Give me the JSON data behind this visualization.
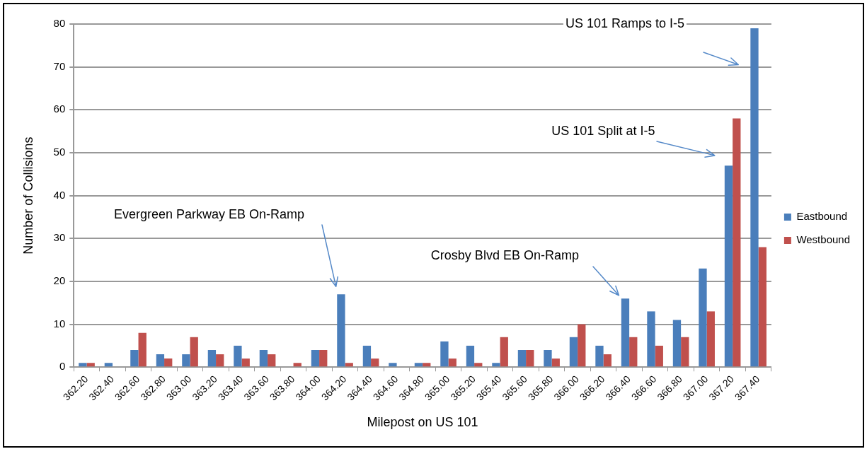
{
  "chart_data": {
    "type": "bar",
    "xlabel": "Milepost on US 101",
    "ylabel": "Number of Collisions",
    "categories": [
      "362.20",
      "362.40",
      "362.60",
      "362.80",
      "363.00",
      "363.20",
      "363.40",
      "363.60",
      "363.80",
      "364.00",
      "364.20",
      "364.40",
      "364.60",
      "364.80",
      "365.00",
      "365.20",
      "365.40",
      "365.60",
      "365.80",
      "366.00",
      "366.20",
      "366.40",
      "366.60",
      "366.80",
      "367.00",
      "367.20",
      "367.40"
    ],
    "series": [
      {
        "name": "Eastbound",
        "color": "#4a7ebb",
        "values": [
          1,
          1,
          4,
          3,
          3,
          4,
          5,
          4,
          0,
          4,
          17,
          5,
          1,
          1,
          6,
          5,
          1,
          4,
          4,
          7,
          5,
          16,
          13,
          11,
          23,
          47,
          79
        ]
      },
      {
        "name": "Westbound",
        "color": "#c0504d",
        "values": [
          1,
          0,
          8,
          2,
          7,
          3,
          2,
          3,
          1,
          4,
          1,
          2,
          0,
          1,
          2,
          1,
          7,
          4,
          2,
          10,
          3,
          7,
          5,
          7,
          13,
          58,
          28
        ]
      }
    ],
    "ylim": [
      0,
      80
    ],
    "yticks": [
      0,
      10,
      20,
      30,
      40,
      50,
      60,
      70,
      80
    ],
    "grid": "y",
    "legend": "right",
    "annotations": [
      "Evergreen Parkway EB On-Ramp",
      "Crosby Blvd EB On-Ramp",
      "US 101 Split at I-5",
      "US 101 Ramps to I-5"
    ]
  }
}
